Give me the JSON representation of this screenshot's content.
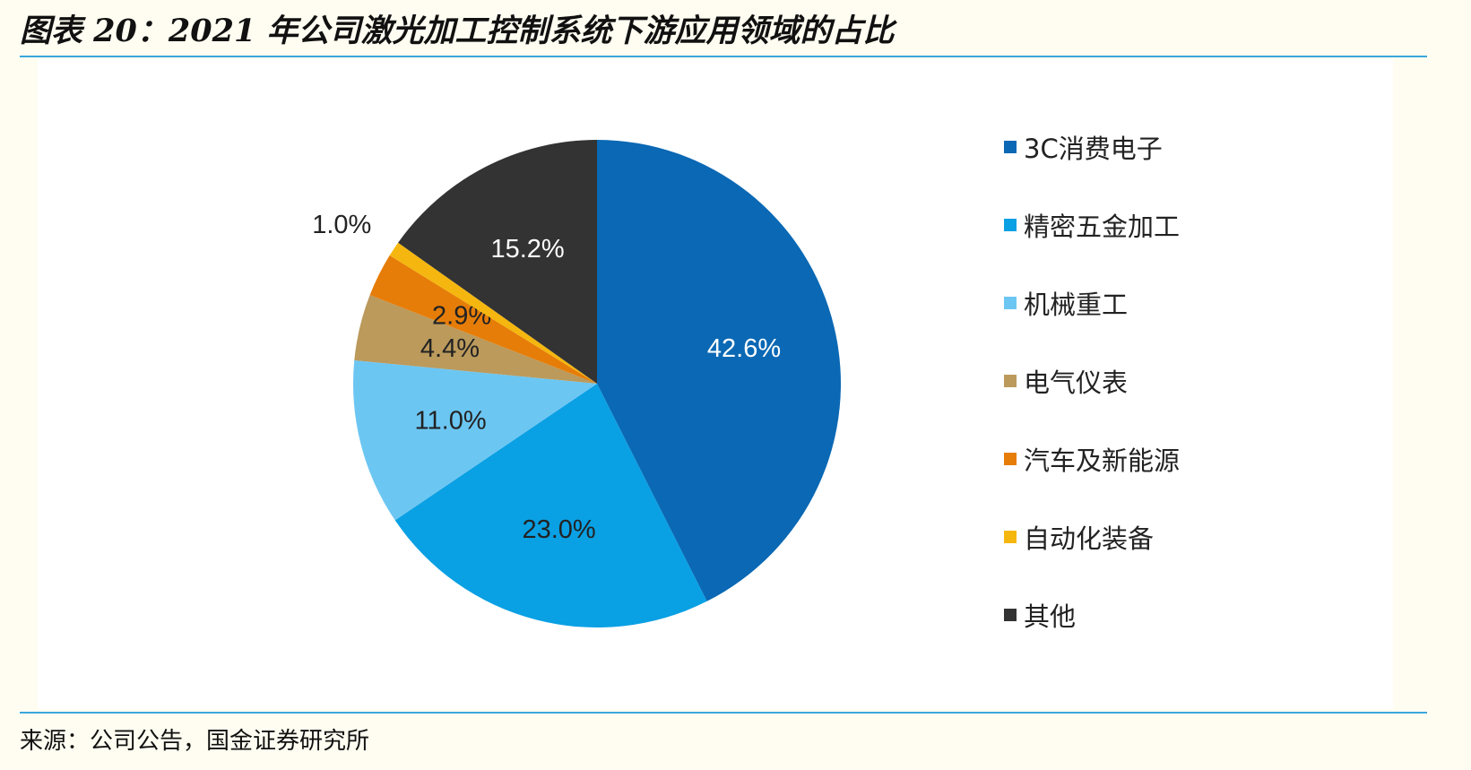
{
  "header": {
    "title": "图表 20：2021 年公司激光加工控制系统下游应用领域的占比"
  },
  "footer": {
    "source": "来源：公司公告，国金证券研究所"
  },
  "chart_data": {
    "type": "pie",
    "title": "",
    "legend_position": "right",
    "categories": [
      "3C消费电子",
      "精密五金加工",
      "机械重工",
      "电气仪表",
      "汽车及新能源",
      "自动化装备",
      "其他"
    ],
    "values": [
      42.6,
      23.0,
      11.0,
      4.4,
      2.9,
      1.0,
      15.2
    ],
    "labels": [
      "42.6%",
      "23.0%",
      "11.0%",
      "4.4%",
      "2.9%",
      "1.0%",
      "15.2%"
    ],
    "colors": [
      "#0a68b4",
      "#0aa0e4",
      "#6cc6f2",
      "#bb9a5c",
      "#e67d08",
      "#f5b70f",
      "#333333"
    ],
    "label_colors": [
      "#ffffff",
      "#222222",
      "#222222",
      "#222222",
      "#222222",
      "#222222",
      "#ffffff"
    ]
  }
}
